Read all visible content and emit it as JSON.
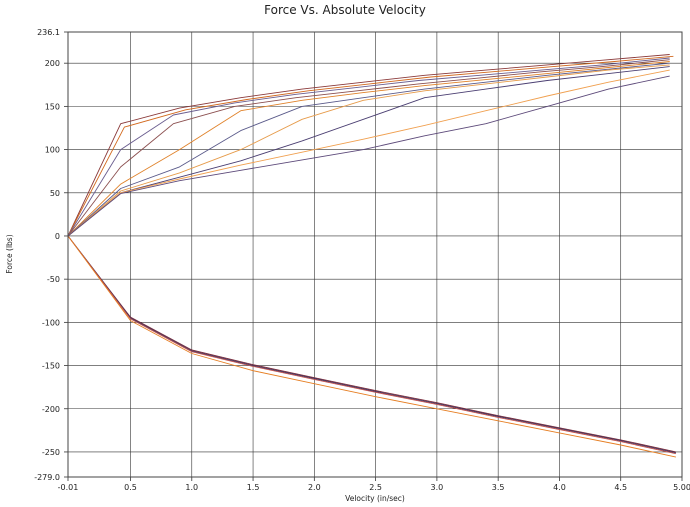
{
  "chart_data": {
    "type": "line",
    "title": "Force Vs. Absolute Velocity",
    "xlabel": "Velocity (in/sec)",
    "ylabel": "Force (lbs)",
    "xlim": [
      -0.01,
      5.0
    ],
    "ylim": [
      -279.0,
      236.1
    ],
    "x_ticks": [
      -0.01,
      0.5,
      1.0,
      1.5,
      2.0,
      2.5,
      3.0,
      3.5,
      4.0,
      4.5,
      5.0
    ],
    "x_tick_labels": [
      "-0.01",
      "0.5",
      "1.0",
      "1.5",
      "2.0",
      "2.5",
      "3.0",
      "3.5",
      "4.0",
      "4.5",
      "5.00"
    ],
    "y_ticks": [
      236.1,
      200,
      150,
      100,
      50,
      0,
      -50,
      -100,
      -150,
      -200,
      -250,
      -279.0
    ],
    "y_tick_labels": [
      "236.1",
      "200",
      "150",
      "100",
      "50",
      "0",
      "-50",
      "-100",
      "-150",
      "-200",
      "-250",
      "-279.0"
    ],
    "grid": true,
    "legend": "none",
    "series": [
      {
        "color": "#8b3a3a",
        "x": [
          -0.01,
          0.42,
          0.9,
          1.4,
          1.9,
          2.4,
          2.9,
          3.4,
          3.9,
          4.4,
          4.9
        ],
        "y": [
          0,
          130,
          148,
          160,
          170,
          178,
          186,
          192,
          198,
          204,
          210
        ]
      },
      {
        "color": "#d2691e",
        "x": [
          -0.01,
          0.45,
          0.95,
          1.45,
          1.95,
          2.45,
          2.95,
          3.45,
          3.95,
          4.45,
          4.93
        ],
        "y": [
          0,
          126,
          146,
          158,
          168,
          176,
          184,
          190,
          196,
          202,
          208
        ]
      },
      {
        "color": "#6a5d8f",
        "x": [
          -0.01,
          0.42,
          0.85,
          1.35,
          1.85,
          2.35,
          2.85,
          3.35,
          3.85,
          4.35,
          4.9
        ],
        "y": [
          0,
          100,
          140,
          154,
          164,
          172,
          180,
          186,
          192,
          198,
          206
        ]
      },
      {
        "color": "#8b4f4f",
        "x": [
          -0.01,
          0.42,
          0.85,
          1.35,
          1.85,
          2.35,
          2.85,
          3.35,
          3.85,
          4.35,
          4.9
        ],
        "y": [
          0,
          80,
          130,
          150,
          160,
          168,
          176,
          183,
          190,
          196,
          204
        ]
      },
      {
        "color": "#e0822a",
        "x": [
          -0.01,
          0.42,
          0.9,
          1.4,
          1.9,
          2.4,
          2.9,
          3.4,
          3.9,
          4.4,
          4.9
        ],
        "y": [
          0,
          60,
          100,
          145,
          157,
          166,
          174,
          181,
          188,
          195,
          202
        ]
      },
      {
        "color": "#5a5a8a",
        "x": [
          -0.01,
          0.42,
          0.9,
          1.4,
          1.9,
          2.4,
          2.9,
          3.4,
          3.9,
          4.4,
          4.9
        ],
        "y": [
          0,
          55,
          80,
          122,
          150,
          160,
          170,
          178,
          186,
          193,
          200
        ]
      },
      {
        "color": "#e69b4a",
        "x": [
          -0.01,
          0.42,
          0.9,
          1.4,
          1.9,
          2.4,
          2.9,
          3.4,
          3.9,
          4.4,
          4.9
        ],
        "y": [
          0,
          52,
          73,
          100,
          135,
          157,
          168,
          176,
          184,
          192,
          198
        ]
      },
      {
        "color": "#4b3f72",
        "x": [
          -0.01,
          0.42,
          0.9,
          1.4,
          1.9,
          2.4,
          2.9,
          3.4,
          3.9,
          4.4,
          4.9
        ],
        "y": [
          0,
          50,
          68,
          87,
          110,
          135,
          160,
          170,
          180,
          188,
          196
        ]
      },
      {
        "color": "#f0a050",
        "x": [
          -0.01,
          0.42,
          0.9,
          1.4,
          1.9,
          2.4,
          2.9,
          3.4,
          3.9,
          4.4,
          4.9
        ],
        "y": [
          0,
          50,
          66,
          82,
          97,
          112,
          128,
          145,
          162,
          178,
          192
        ]
      },
      {
        "color": "#5d4a7a",
        "x": [
          -0.01,
          0.42,
          0.9,
          1.4,
          1.9,
          2.4,
          2.9,
          3.4,
          3.9,
          4.4,
          4.9
        ],
        "y": [
          0,
          49,
          64,
          76,
          88,
          100,
          116,
          130,
          150,
          170,
          185
        ]
      },
      {
        "color": "#7a2a3a",
        "x": [
          -0.01,
          0.5,
          1.0,
          1.5,
          2.0,
          2.5,
          3.0,
          3.5,
          4.0,
          4.5,
          4.95
        ],
        "y": [
          0,
          -94,
          -132,
          -149,
          -164,
          -179,
          -193,
          -208,
          -222,
          -236,
          -250
        ]
      },
      {
        "color": "#3d3560",
        "x": [
          -0.01,
          0.5,
          1.0,
          1.5,
          2.0,
          2.5,
          3.0,
          3.5,
          4.0,
          4.5,
          4.95
        ],
        "y": [
          0,
          -95,
          -133,
          -150,
          -165,
          -180,
          -194,
          -209,
          -223,
          -237,
          -251
        ]
      },
      {
        "color": "#c0504d",
        "x": [
          -0.01,
          0.5,
          1.0,
          1.5,
          2.0,
          2.5,
          3.0,
          3.5,
          4.0,
          4.5,
          4.95
        ],
        "y": [
          0,
          -96,
          -134,
          -151,
          -166,
          -181,
          -195,
          -210,
          -224,
          -238,
          -252
        ]
      },
      {
        "color": "#e67e22",
        "x": [
          -0.01,
          0.5,
          1.0,
          1.5,
          2.0,
          2.5,
          3.0,
          3.5,
          4.0,
          4.5,
          4.95
        ],
        "y": [
          0,
          -98,
          -136,
          -156,
          -171,
          -186,
          -200,
          -214,
          -228,
          -242,
          -256
        ]
      }
    ]
  }
}
